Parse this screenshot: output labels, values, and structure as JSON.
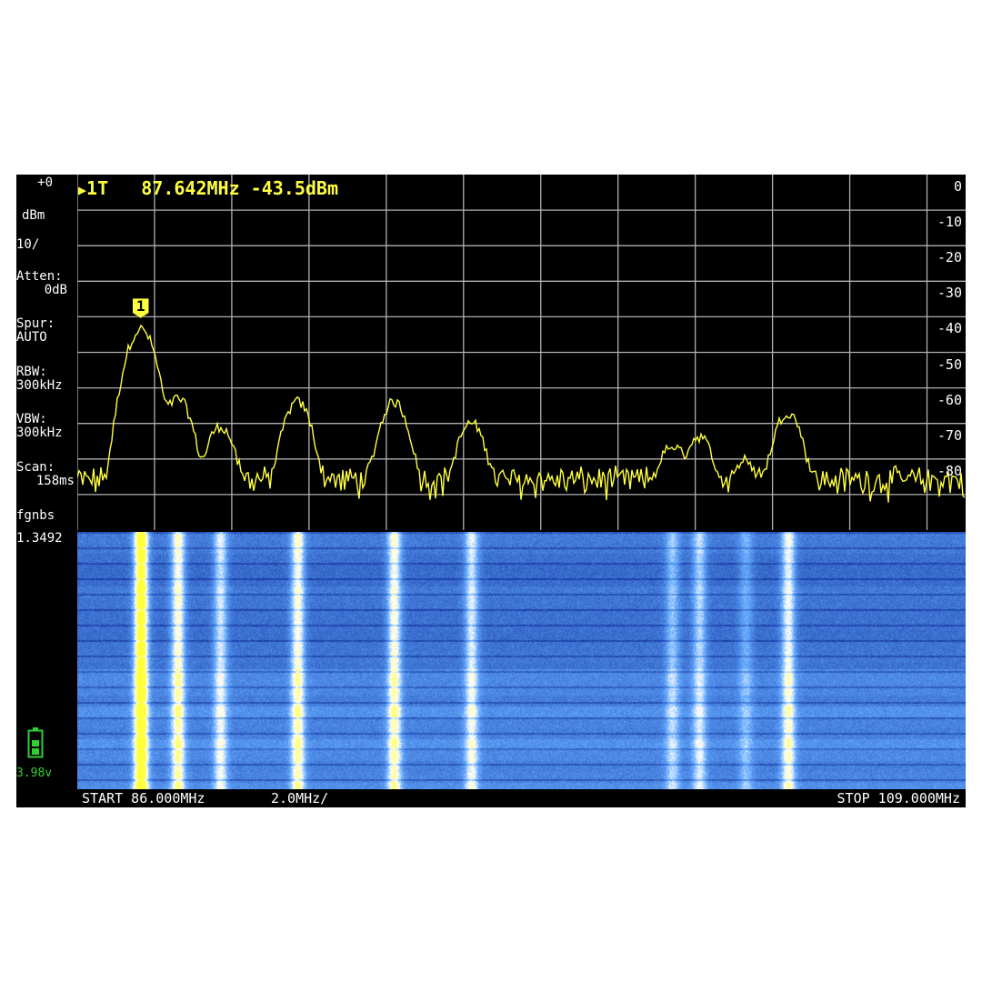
{
  "marker": {
    "arrow": "▶",
    "label": "1T",
    "frequency": "87.642MHz",
    "level": "-43.5dBm",
    "tag": "1"
  },
  "left_panel": {
    "ref_level": "+0",
    "unit": "dBm",
    "scale": "10/",
    "atten_label": "Atten:",
    "atten_value": "0dB",
    "spur_label": "Spur:",
    "spur_value": "AUTO",
    "rbw_label": "RBW:",
    "rbw_value": "300kHz",
    "vbw_label": "VBW:",
    "vbw_value": "300kHz",
    "scan_label": "Scan:",
    "scan_value": "158ms",
    "mode": "fgnbs",
    "version": "1.3492",
    "battery_voltage": "3.98v",
    "battery_icon": "battery-icon"
  },
  "bottom_bar": {
    "start": "START 86.000MHz",
    "per_div": "2.0MHz/",
    "stop": "STOP 109.000MHz"
  },
  "colors": {
    "trace": "#ffff40",
    "grid": "#b0b0b0",
    "battery": "#30d030",
    "background": "#000000",
    "waterfall": "#1040d0"
  },
  "chart_data": {
    "type": "line",
    "xlim": [
      86.0,
      109.0
    ],
    "ylim": [
      -100,
      0
    ],
    "grid": true,
    "y_ticks": [
      "0",
      "-10",
      "-20",
      "-30",
      "-40",
      "-50",
      "-60",
      "-70",
      "-80"
    ],
    "noise_floor_dbm": -86,
    "peaks": [
      {
        "freq_mhz": 87.642,
        "dbm": -43.5
      },
      {
        "freq_mhz": 88.6,
        "dbm": -63
      },
      {
        "freq_mhz": 89.7,
        "dbm": -71
      },
      {
        "freq_mhz": 91.7,
        "dbm": -64
      },
      {
        "freq_mhz": 94.2,
        "dbm": -64
      },
      {
        "freq_mhz": 96.2,
        "dbm": -70
      },
      {
        "freq_mhz": 101.4,
        "dbm": -77
      },
      {
        "freq_mhz": 102.1,
        "dbm": -74
      },
      {
        "freq_mhz": 103.3,
        "dbm": -82
      },
      {
        "freq_mhz": 104.4,
        "dbm": -67
      }
    ]
  }
}
